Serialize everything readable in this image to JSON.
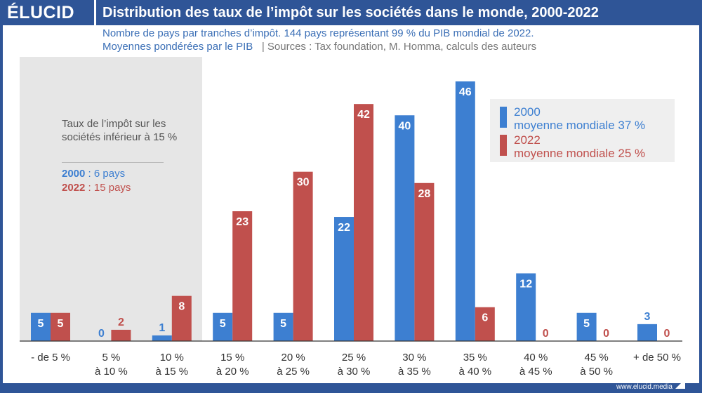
{
  "header": {
    "logo": "ÉLUCID",
    "title": "Distribution des taux de l’impôt sur les sociétés dans le monde, 2000-2022",
    "subtitle_line1": "Nombre de pays par tranches d’impôt. 144 pays représentant 99 % du PIB mondial de 2022.",
    "subtitle_line2": "Moyennes pondérées par le PIB",
    "source": "| Sources : Tax foundation, M. Homma, calculs des auteurs"
  },
  "annotation": {
    "text": "Taux de l’impôt sur les sociétés inférieur à 15 %",
    "year_2000": "2000",
    "detail_2000": " : 6 pays",
    "year_2022": "2022",
    "detail_2022": " : 15 pays"
  },
  "legend": {
    "items": [
      {
        "year": "2000",
        "text": "moyenne mondiale 37 %"
      },
      {
        "year": "2022",
        "text": "moyenne mondiale 25 %"
      }
    ]
  },
  "footer": {
    "website": "www.elucid.media"
  },
  "colors": {
    "series_2000": "#3d7fd1",
    "series_2022": "#c0504d",
    "header": "#2f5597"
  },
  "chart_data": {
    "type": "bar",
    "categories": [
      [
        "- de 5 %"
      ],
      [
        "5 %",
        "à 10 %"
      ],
      [
        "10 %",
        "à 15 %"
      ],
      [
        "15 %",
        "à 20 %"
      ],
      [
        "20 %",
        "à 25 %"
      ],
      [
        "25 %",
        "à 30 %"
      ],
      [
        "30 %",
        "à 35 %"
      ],
      [
        "35 %",
        "à 40 %"
      ],
      [
        "40 %",
        "à 45 %"
      ],
      [
        "45 %",
        "à 50 %"
      ],
      [
        "+ de 50 %"
      ]
    ],
    "series": [
      {
        "name": "2000",
        "values": [
          5,
          0,
          1,
          5,
          5,
          22,
          40,
          46,
          12,
          5,
          3
        ]
      },
      {
        "name": "2022",
        "values": [
          5,
          2,
          8,
          23,
          30,
          42,
          28,
          6,
          0,
          0,
          0
        ]
      }
    ],
    "ylim": [
      0,
      46
    ],
    "grid": false,
    "legend_position": "top-right"
  }
}
